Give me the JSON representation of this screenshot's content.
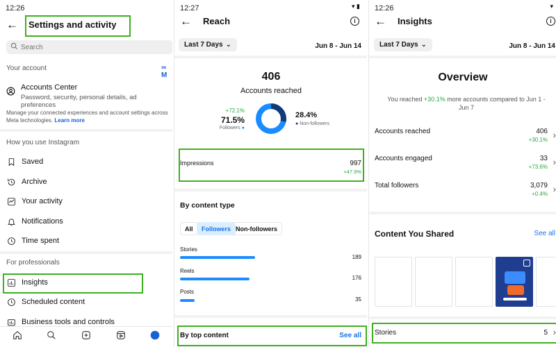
{
  "panel1": {
    "time": "12:26",
    "title": "Settings and activity",
    "search_placeholder": "Search",
    "your_account": "Your account",
    "meta_logo": "∞ M",
    "accounts_center": "Accounts Center",
    "accounts_center_sub": "Password, security, personal details, ad preferences",
    "manage_text": "Manage your connected experiences and account settings across Meta technologies.",
    "learn_more": "Learn more",
    "how_you_use": "How you use Instagram",
    "items": [
      "Saved",
      "Archive",
      "Your activity",
      "Notifications",
      "Time spent"
    ],
    "for_professionals": "For professionals",
    "pro_items": [
      "Insights",
      "Scheduled content",
      "Business tools and controls"
    ]
  },
  "panel2": {
    "time": "12:27",
    "title": "Reach",
    "range_button": "Last 7 Days",
    "date_range": "Jun 8 - Jun 14",
    "accounts_reached_value": "406",
    "accounts_reached_label": "Accounts reached",
    "followers_delta": "+72.1%",
    "followers_pct": "71.5%",
    "followers_label": "Followers",
    "nonfollowers_pct": "28.4%",
    "nonfollowers_label": "Non-followers",
    "donut_followers_fraction": 0.715,
    "impressions_label": "Impressions",
    "impressions_value": "997",
    "impressions_delta": "+47.9%",
    "by_content_type": "By content type",
    "chips": [
      "All",
      "Followers",
      "Non-followers"
    ],
    "content_rows": [
      {
        "label": "Stories",
        "value": "189",
        "fraction": 1.0
      },
      {
        "label": "Reels",
        "value": "176",
        "fraction": 0.93
      },
      {
        "label": "Posts",
        "value": "35",
        "fraction": 0.19
      }
    ],
    "by_top_content": "By top content",
    "see_all": "See all",
    "accent": "#1a8cff"
  },
  "panel3": {
    "time": "12:26",
    "title": "Insights",
    "range_button": "Last 7 Days",
    "date_range": "Jun 8 - Jun 14",
    "overview": "Overview",
    "reached_prefix": "You reached ",
    "reached_delta": "+30.1%",
    "reached_suffix": " more accounts compared to Jun 1 - Jun 7",
    "rows": [
      {
        "label": "Accounts reached",
        "value": "406",
        "delta": "+30.1%"
      },
      {
        "label": "Accounts engaged",
        "value": "33",
        "delta": "+73.6%"
      },
      {
        "label": "Total followers",
        "value": "3,079",
        "delta": "+0.4%"
      }
    ],
    "content_you_shared": "Content You Shared",
    "see_all": "See all",
    "stories_label": "Stories",
    "stories_value": "5"
  }
}
